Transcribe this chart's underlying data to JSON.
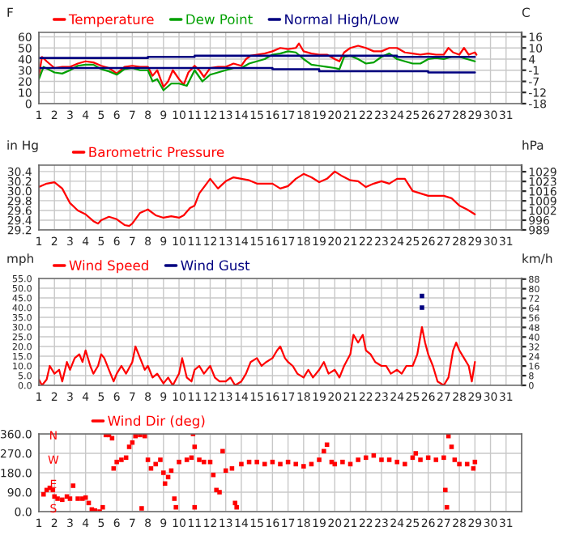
{
  "chart_data": [
    {
      "type": "line",
      "ylabel": "F",
      "y2label": "C",
      "legend": "top left",
      "grid": true,
      "xlim": [
        1,
        32
      ],
      "xticks": [
        1,
        2,
        3,
        4,
        5,
        6,
        7,
        8,
        9,
        10,
        11,
        12,
        13,
        14,
        15,
        16,
        17,
        18,
        19,
        20,
        21,
        22,
        23,
        24,
        25,
        26,
        27,
        28,
        29,
        30,
        31
      ],
      "ylim": [
        0,
        64
      ],
      "yticks": [
        0,
        10,
        20,
        30,
        40,
        50,
        60
      ],
      "y2lim": [
        -17.8,
        17.8
      ],
      "y2ticks": [
        {
          "value": 15.6,
          "label": "16"
        },
        {
          "value": 10,
          "label": "10"
        },
        {
          "value": 4.4,
          "label": "4"
        },
        {
          "value": -1.1,
          "label": "-1"
        },
        {
          "value": -6.7,
          "label": "-7"
        },
        {
          "value": -12.2,
          "label": "-12"
        },
        {
          "value": -17.8,
          "label": "-18"
        }
      ],
      "series": [
        {
          "name": "Temperature",
          "color": "#ff0000",
          "x": [
            1.0,
            1.2,
            1.5,
            2,
            2.5,
            3,
            3.5,
            4,
            4.5,
            5,
            5.5,
            6,
            6.5,
            7,
            7.5,
            8,
            8.3,
            8.6,
            9,
            9.3,
            9.6,
            10,
            10.3,
            10.6,
            11,
            11.3,
            11.6,
            12,
            12.5,
            13,
            13.5,
            14,
            14.3,
            14.6,
            15,
            15.5,
            16,
            16.5,
            17,
            17.5,
            17.7,
            18,
            18.5,
            19,
            19.5,
            20,
            20.3,
            20.6,
            21,
            21.5,
            22,
            22.5,
            23,
            23.5,
            24,
            24.5,
            25,
            25.5,
            26,
            26.5,
            27,
            27.3,
            27.6,
            28,
            28.3,
            28.6,
            29,
            29.1
          ],
          "values": [
            25,
            42,
            38,
            32,
            33,
            33,
            36,
            38,
            37,
            34,
            32,
            27,
            33,
            34,
            33,
            33,
            25,
            30,
            15,
            20,
            30,
            22,
            17,
            28,
            34,
            30,
            24,
            32,
            33,
            33,
            36,
            34,
            40,
            43,
            44,
            45,
            47,
            50,
            49,
            50,
            54,
            47,
            45,
            44,
            44,
            40,
            38,
            46,
            50,
            52,
            50,
            47,
            47,
            50,
            50,
            46,
            45,
            44,
            45,
            44,
            44,
            50,
            46,
            44,
            50,
            44,
            46,
            44
          ]
        },
        {
          "name": "Dew Point",
          "color": "#00a000",
          "x": [
            1,
            1.3,
            2,
            2.5,
            3,
            3.5,
            4,
            4.5,
            5,
            5.5,
            6,
            6.5,
            7,
            7.5,
            8,
            8.3,
            8.6,
            9,
            9.5,
            10,
            10.5,
            11,
            11.5,
            12,
            12.5,
            13,
            13.5,
            14,
            14.5,
            15,
            15.5,
            16,
            16.5,
            17,
            17.5,
            18,
            18.5,
            19,
            19.5,
            20,
            20.3,
            20.6,
            21,
            21.5,
            22,
            22.5,
            23,
            23.5,
            24,
            24.5,
            25,
            25.5,
            26,
            26.5,
            27,
            27.5,
            28,
            28.5,
            29
          ],
          "values": [
            22,
            33,
            28,
            27,
            30,
            34,
            35,
            35,
            31,
            29,
            26,
            31,
            32,
            30,
            30,
            20,
            22,
            12,
            18,
            18,
            16,
            30,
            20,
            26,
            28,
            30,
            32,
            32,
            36,
            38,
            40,
            44,
            45,
            47,
            46,
            40,
            35,
            34,
            33,
            32,
            31,
            42,
            43,
            40,
            36,
            37,
            42,
            45,
            40,
            38,
            36,
            36,
            40,
            41,
            40,
            42,
            42,
            40,
            38
          ]
        },
        {
          "name": "Normal High/Low",
          "type": "step",
          "color": "#000080",
          "x": [
            1,
            8,
            11,
            14,
            16,
            18,
            24,
            26,
            29
          ],
          "values": [
            41,
            42,
            43,
            43,
            43,
            43,
            42,
            42,
            42
          ]
        },
        {
          "type": "step",
          "color": "#000080",
          "x": [
            1,
            16,
            19,
            26,
            29
          ],
          "values": [
            32,
            31,
            29,
            28,
            28
          ]
        }
      ]
    },
    {
      "type": "line",
      "ylabel": "in Hg",
      "y2label": "hPa",
      "legend": "top left",
      "grid": true,
      "xlim": [
        1,
        32
      ],
      "xticks": [
        1,
        2,
        3,
        4,
        5,
        6,
        7,
        8,
        9,
        10,
        11,
        12,
        13,
        14,
        15,
        16,
        17,
        18,
        19,
        20,
        21,
        22,
        23,
        24,
        25,
        26,
        27,
        28,
        29,
        30,
        31
      ],
      "ylim": [
        29.2,
        30.53
      ],
      "yticks": [
        29.2,
        29.4,
        29.6,
        29.8,
        {
          "value": 30.0,
          "label": "30.0"
        },
        30.2,
        30.4
      ],
      "y2lim": [
        988.8,
        1034.1
      ],
      "y2ticks": [
        {
          "value": 1029.5,
          "label": "1029"
        },
        {
          "value": 1022.7,
          "label": "1023"
        },
        {
          "value": 1015.9,
          "label": "1016"
        },
        {
          "value": 1009.1,
          "label": "1009"
        },
        {
          "value": 1002.4,
          "label": "1002"
        },
        {
          "value": 995.6,
          "label": "996"
        },
        {
          "value": 988.8,
          "label": "989"
        }
      ],
      "series": [
        {
          "name": "Barometric Pressure",
          "color": "#ff0000",
          "x": [
            1,
            1.5,
            2,
            2.5,
            3,
            3.5,
            4,
            4.5,
            4.8,
            5,
            5.5,
            6,
            6.5,
            6.8,
            7,
            7.5,
            8,
            8.5,
            9,
            9.5,
            10,
            10.3,
            10.7,
            11,
            11.3,
            11.7,
            12,
            12.5,
            13,
            13.5,
            14,
            14.5,
            15,
            16,
            16.5,
            17,
            17.5,
            18,
            18.5,
            19,
            19.5,
            20,
            20.5,
            21,
            21.5,
            22,
            22.5,
            23,
            23.5,
            24,
            24.5,
            25,
            25.5,
            26,
            26.5,
            27,
            27.5,
            28,
            28.5,
            29
          ],
          "values": [
            30.08,
            30.15,
            30.18,
            30.05,
            29.75,
            29.6,
            29.52,
            29.38,
            29.33,
            29.4,
            29.47,
            29.42,
            29.3,
            29.28,
            29.33,
            29.55,
            29.62,
            29.5,
            29.45,
            29.48,
            29.45,
            29.5,
            29.65,
            29.7,
            29.95,
            30.12,
            30.25,
            30.05,
            30.2,
            30.28,
            30.25,
            30.22,
            30.15,
            30.15,
            30.05,
            30.1,
            30.25,
            30.35,
            30.28,
            30.18,
            30.25,
            30.4,
            30.3,
            30.22,
            30.2,
            30.08,
            30.15,
            30.2,
            30.15,
            30.25,
            30.25,
            30.0,
            29.95,
            29.9,
            29.9,
            29.9,
            29.85,
            29.7,
            29.62,
            29.52
          ]
        }
      ]
    },
    {
      "type": "line",
      "ylabel": "mph",
      "y2label": "km/h",
      "legend": "top left",
      "grid": true,
      "xlim": [
        1,
        32
      ],
      "xticks": [
        1,
        2,
        3,
        4,
        5,
        6,
        7,
        8,
        9,
        10,
        11,
        12,
        13,
        14,
        15,
        16,
        17,
        18,
        19,
        20,
        21,
        22,
        23,
        24,
        25,
        26,
        27,
        28,
        29,
        30,
        31
      ],
      "ylim": [
        0,
        55
      ],
      "yticks": [
        {
          "value": 0,
          "label": "0.0"
        },
        {
          "value": 5,
          "label": "5.0"
        },
        {
          "value": 10,
          "label": "10.0"
        },
        {
          "value": 15,
          "label": "15.0"
        },
        {
          "value": 20,
          "label": "20.0"
        },
        {
          "value": 25,
          "label": "25.0"
        },
        {
          "value": 30,
          "label": "30.0"
        },
        {
          "value": 35,
          "label": "35.0"
        },
        {
          "value": 40,
          "label": "40.0"
        },
        {
          "value": 45,
          "label": "45.0"
        },
        {
          "value": 50,
          "label": "50.0"
        },
        {
          "value": 55,
          "label": "55.0"
        }
      ],
      "y2lim": [
        0,
        88.5
      ],
      "y2ticks": [
        0,
        8,
        16,
        24,
        32,
        40,
        48,
        56,
        64,
        72,
        80,
        88
      ],
      "series": [
        {
          "name": "Wind Speed",
          "color": "#ff0000",
          "x": [
            1,
            1.2,
            1.5,
            1.7,
            2,
            2.3,
            2.5,
            2.8,
            3,
            3.3,
            3.6,
            3.8,
            4,
            4.3,
            4.5,
            4.8,
            5,
            5.2,
            5.5,
            5.8,
            6,
            6.3,
            6.6,
            7,
            7.2,
            7.5,
            7.8,
            8,
            8.3,
            8.6,
            9,
            9.3,
            9.6,
            10,
            10.2,
            10.5,
            10.8,
            11,
            11.3,
            11.6,
            12,
            12.3,
            12.6,
            13,
            13.3,
            13.6,
            14,
            14.3,
            14.6,
            15,
            15.3,
            15.6,
            16,
            16.3,
            16.5,
            16.8,
            17,
            17.3,
            17.6,
            18,
            18.3,
            18.6,
            19,
            19.3,
            19.6,
            20,
            20.3,
            20.6,
            21,
            21.2,
            21.5,
            21.8,
            22,
            22.3,
            22.6,
            23,
            23.3,
            23.6,
            24,
            24.3,
            24.6,
            25,
            25.3,
            25.6,
            25.8,
            26,
            26.3,
            26.6,
            27,
            27.3,
            27.6,
            27.8,
            28,
            28.3,
            28.6,
            28.8,
            29
          ],
          "values": [
            3,
            0,
            3,
            10,
            6,
            8,
            2,
            12,
            8,
            14,
            16,
            12,
            18,
            10,
            6,
            10,
            16,
            14,
            8,
            2,
            6,
            10,
            6,
            12,
            20,
            14,
            8,
            10,
            4,
            6,
            1,
            4,
            0,
            6,
            14,
            4,
            2,
            8,
            10,
            6,
            10,
            4,
            2,
            2,
            4,
            0,
            2,
            6,
            12,
            14,
            10,
            12,
            14,
            18,
            20,
            14,
            12,
            10,
            6,
            4,
            8,
            4,
            8,
            12,
            6,
            8,
            4,
            10,
            16,
            26,
            22,
            26,
            18,
            16,
            12,
            10,
            10,
            6,
            8,
            6,
            10,
            10,
            16,
            30,
            22,
            16,
            10,
            2,
            0,
            4,
            18,
            22,
            18,
            14,
            10,
            2,
            12
          ]
        },
        {
          "name": "Wind Gust",
          "type": "scatter",
          "marker": "square",
          "color": "#000080",
          "x": [
            25.6,
            25.6
          ],
          "values": [
            46,
            40
          ]
        }
      ]
    },
    {
      "type": "scatter",
      "legend": "top left",
      "grid": true,
      "marker": "square",
      "xlim": [
        1,
        32
      ],
      "xticks": [
        1,
        2,
        3,
        4,
        5,
        6,
        7,
        8,
        9,
        10,
        11,
        12,
        13,
        14,
        15,
        16,
        17,
        18,
        19,
        20,
        21,
        22,
        23,
        24,
        25,
        26,
        27,
        28,
        29,
        30,
        31
      ],
      "ylim": [
        0,
        360
      ],
      "yticks": [
        {
          "value": 0,
          "label": "0.0"
        },
        {
          "value": 90,
          "label": "90.0"
        },
        {
          "value": 180,
          "label": "180.0"
        },
        {
          "value": 270,
          "label": "270.0"
        },
        {
          "value": 360,
          "label": "360.0"
        }
      ],
      "annotations": [
        "N",
        "W",
        "E",
        "S"
      ],
      "series": [
        {
          "name": "Wind Dir (deg)",
          "color": "#ff0000",
          "x": [
            1.3,
            1.5,
            1.7,
            1.9,
            2,
            2.2,
            2.5,
            2.8,
            3,
            3.2,
            3.5,
            3.8,
            4,
            4.2,
            4.4,
            4.6,
            4.9,
            5.1,
            5.3,
            5.5,
            5.7,
            5.8,
            6,
            6.3,
            6.6,
            6.8,
            7,
            7.2,
            7.5,
            7.6,
            7.8,
            8,
            8.2,
            8.5,
            8.8,
            9,
            9.1,
            9.3,
            9.5,
            9.7,
            9.8,
            10,
            10.5,
            10.8,
            10.9,
            11,
            11.0,
            11.3,
            11.6,
            12,
            12.2,
            12.4,
            12.6,
            12.8,
            13,
            13.4,
            13.6,
            13.7,
            14,
            14.5,
            15,
            15.5,
            16,
            16.5,
            17,
            17.5,
            18,
            18.5,
            19,
            19.3,
            19.5,
            19.8,
            20,
            20.5,
            21,
            21.5,
            22,
            22.5,
            23,
            23.5,
            24,
            24.5,
            25,
            25.2,
            25.5,
            26,
            26.5,
            27,
            27.1,
            27.2,
            27.3,
            27.5,
            27.7,
            28,
            28.5,
            28.9,
            29
          ],
          "values": [
            80,
            100,
            110,
            100,
            70,
            60,
            55,
            70,
            60,
            120,
            60,
            60,
            65,
            40,
            10,
            5,
            0,
            20,
            355,
            355,
            340,
            200,
            230,
            240,
            250,
            300,
            320,
            350,
            355,
            15,
            350,
            240,
            200,
            220,
            240,
            180,
            130,
            160,
            190,
            60,
            20,
            230,
            240,
            250,
            360,
            300,
            20,
            240,
            230,
            230,
            170,
            100,
            90,
            280,
            190,
            200,
            40,
            20,
            220,
            230,
            230,
            220,
            230,
            220,
            230,
            220,
            210,
            220,
            240,
            280,
            310,
            230,
            220,
            230,
            220,
            240,
            250,
            260,
            240,
            240,
            230,
            220,
            250,
            270,
            240,
            250,
            240,
            250,
            100,
            20,
            350,
            300,
            240,
            220,
            220,
            200,
            230
          ]
        }
      ]
    }
  ]
}
